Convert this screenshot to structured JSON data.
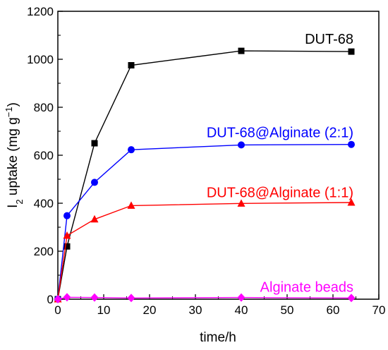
{
  "chart_data": {
    "type": "line",
    "xlabel": "time/h",
    "ylabel": {
      "main": "I",
      "sub": "2",
      "rest": " uptake (mg g",
      "sup": "−1",
      "close": ")"
    },
    "xlim": [
      0,
      70
    ],
    "ylim": [
      0,
      1200
    ],
    "x_ticks": [
      0,
      10,
      20,
      30,
      40,
      50,
      60,
      70
    ],
    "y_ticks": [
      0,
      200,
      400,
      600,
      800,
      1000,
      1200
    ],
    "legend": "inline labels next to each series",
    "grid": false,
    "series": [
      {
        "name": "DUT-68",
        "color": "#000000",
        "marker": "square",
        "x": [
          0,
          2,
          8,
          16,
          40,
          64
        ],
        "y": [
          0,
          220,
          650,
          975,
          1035,
          1032
        ]
      },
      {
        "name": "DUT-68@Alginate (2:1)",
        "color": "#0000ff",
        "marker": "circle",
        "x": [
          0,
          2,
          8,
          16,
          40,
          64
        ],
        "y": [
          0,
          348,
          487,
          623,
          643,
          645
        ]
      },
      {
        "name": "DUT-68@Alginate (1:1)",
        "color": "#ff0000",
        "marker": "triangle",
        "x": [
          0,
          2,
          8,
          16,
          40,
          64
        ],
        "y": [
          0,
          265,
          333,
          390,
          399,
          403
        ]
      },
      {
        "name": "Alginate beads",
        "color": "#ff00ff",
        "marker": "diamond",
        "x": [
          0,
          2,
          8,
          16,
          40,
          64
        ],
        "y": [
          0,
          8,
          7,
          5,
          7,
          5
        ]
      }
    ]
  }
}
